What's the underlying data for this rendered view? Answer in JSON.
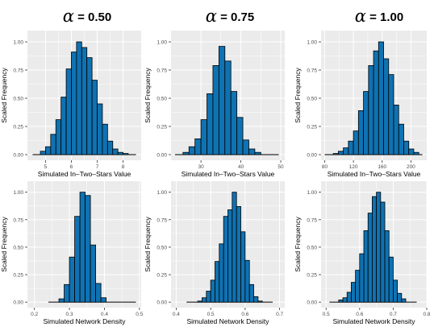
{
  "columns": [
    {
      "symbol": "α",
      "label": "= 0.50"
    },
    {
      "symbol": "α",
      "label": "= 0.75"
    },
    {
      "symbol": "α",
      "label": "= 1.00"
    }
  ],
  "colors": {
    "bar": "#0f72b2",
    "edge": "#000000",
    "panel": "#ebebeb",
    "grid": "#ffffff"
  },
  "chart_data": [
    {
      "type": "bar",
      "xlabel": "Simulated In–Two–Stars Value",
      "ylabel": "Scaled Frequency",
      "xlim": [
        4.3,
        8.7
      ],
      "ylim": [
        -0.05,
        1.1
      ],
      "xticks": [
        5,
        6,
        7,
        8
      ],
      "xtick_labels": [
        "5",
        "6",
        "7",
        "8"
      ],
      "yticks": [
        0,
        0.25,
        0.5,
        0.75,
        1.0
      ],
      "ytick_labels": [
        "0.00",
        "0.25",
        "0.50",
        "0.75",
        "1.00"
      ],
      "bin_width": 0.2,
      "bin_starts": [
        4.8,
        5.0,
        5.2,
        5.4,
        5.6,
        5.8,
        6.0,
        6.2,
        6.4,
        6.6,
        6.8,
        7.0,
        7.2,
        7.4,
        7.6,
        7.8,
        8.0
      ],
      "values": [
        0.03,
        0.07,
        0.18,
        0.31,
        0.51,
        0.76,
        0.91,
        1.0,
        0.95,
        0.86,
        0.66,
        0.45,
        0.27,
        0.12,
        0.05,
        0.02,
        0.01
      ],
      "tail_range": [
        4.5,
        8.5
      ]
    },
    {
      "type": "bar",
      "xlabel": "Simulated In–Two–Stars Value",
      "ylabel": "Scaled Frequency",
      "xlim": [
        22.5,
        51
      ],
      "ylim": [
        -0.05,
        1.1
      ],
      "xticks": [
        30,
        40,
        50
      ],
      "xtick_labels": [
        "30",
        "40",
        "50"
      ],
      "yticks": [
        0,
        0.25,
        0.5,
        0.75,
        1.0
      ],
      "ytick_labels": [
        "0.00",
        "0.25",
        "0.50",
        "0.75",
        "1.00"
      ],
      "bin_width": 1.5,
      "bin_starts": [
        25.5,
        27.0,
        28.5,
        30.0,
        31.5,
        33.0,
        34.5,
        36.0,
        37.5,
        39.0,
        40.5,
        42.0,
        43.5
      ],
      "values": [
        0.02,
        0.07,
        0.14,
        0.31,
        0.54,
        0.79,
        0.96,
        0.83,
        0.56,
        0.33,
        0.13,
        0.05,
        0.02
      ],
      "tail_range": [
        23.5,
        49.5
      ]
    },
    {
      "type": "bar",
      "xlabel": "Simulated In–Two–Stars Value",
      "ylabel": "Scaled Frequency",
      "xlim": [
        75,
        222
      ],
      "ylim": [
        -0.05,
        1.1
      ],
      "xticks": [
        80,
        120,
        160,
        200
      ],
      "xtick_labels": [
        "80",
        "120",
        "160",
        "200"
      ],
      "yticks": [
        0,
        0.25,
        0.5,
        0.75,
        1.0
      ],
      "ytick_labels": [
        "0.00",
        "0.25",
        "0.50",
        "0.75",
        "1.00"
      ],
      "bin_width": 7,
      "bin_starts": [
        92,
        99,
        106,
        113,
        120,
        127,
        134,
        141,
        148,
        155,
        162,
        169,
        176,
        183,
        190,
        197,
        204
      ],
      "values": [
        0.01,
        0.03,
        0.06,
        0.12,
        0.21,
        0.39,
        0.56,
        0.79,
        0.92,
        1.0,
        0.85,
        0.71,
        0.44,
        0.27,
        0.12,
        0.05,
        0.02
      ],
      "tail_range": [
        80,
        216
      ]
    },
    {
      "type": "bar",
      "xlabel": "Simulated Network Density",
      "ylabel": "Scaled Frequency",
      "xlim": [
        0.18,
        0.505
      ],
      "ylim": [
        -0.05,
        1.1
      ],
      "xticks": [
        0.2,
        0.3,
        0.4,
        0.5
      ],
      "xtick_labels": [
        "0.2",
        "0.3",
        "0.4",
        "0.5"
      ],
      "yticks": [
        0,
        0.25,
        0.5,
        0.75,
        1.0
      ],
      "ytick_labels": [
        "0.00",
        "0.25",
        "0.50",
        "0.75",
        "1.00"
      ],
      "bin_width": 0.015,
      "bin_starts": [
        0.27,
        0.285,
        0.3,
        0.315,
        0.33,
        0.345,
        0.36,
        0.375,
        0.39
      ],
      "values": [
        0.03,
        0.16,
        0.41,
        0.78,
        1.0,
        0.97,
        0.52,
        0.17,
        0.04
      ],
      "tail_range": [
        0.24,
        0.49
      ]
    },
    {
      "type": "bar",
      "xlabel": "Simulated Network Density",
      "ylabel": "Scaled Frequency",
      "xlim": [
        0.385,
        0.715
      ],
      "ylim": [
        -0.05,
        1.1
      ],
      "xticks": [
        0.4,
        0.5,
        0.6,
        0.7
      ],
      "xtick_labels": [
        "0.4",
        "0.5",
        "0.6",
        "0.7"
      ],
      "yticks": [
        0,
        0.25,
        0.5,
        0.75,
        1.0
      ],
      "ytick_labels": [
        "0.00",
        "0.25",
        "0.50",
        "0.75",
        "1.00"
      ],
      "bin_width": 0.0125,
      "bin_starts": [
        0.4625,
        0.475,
        0.4875,
        0.5,
        0.5125,
        0.525,
        0.5375,
        0.55,
        0.5625,
        0.575,
        0.5875,
        0.6,
        0.6125,
        0.625,
        0.6375
      ],
      "values": [
        0.01,
        0.04,
        0.1,
        0.2,
        0.37,
        0.53,
        0.78,
        0.84,
        1.0,
        0.87,
        0.64,
        0.38,
        0.16,
        0.05,
        0.01
      ],
      "tail_range": [
        0.43,
        0.68
      ]
    },
    {
      "type": "bar",
      "xlabel": "Simulated Network Density",
      "ylabel": "Scaled Frequency",
      "xlim": [
        0.485,
        0.8
      ],
      "ylim": [
        -0.05,
        1.1
      ],
      "xticks": [
        0.5,
        0.6,
        0.7,
        0.8
      ],
      "xtick_labels": [
        "0.5",
        "0.6",
        "0.7",
        "0.8"
      ],
      "yticks": [
        0,
        0.25,
        0.5,
        0.75,
        1.0
      ],
      "ytick_labels": [
        "0.00",
        "0.25",
        "0.50",
        "0.75",
        "1.00"
      ],
      "bin_width": 0.0125,
      "bin_starts": [
        0.5375,
        0.55,
        0.5625,
        0.575,
        0.5875,
        0.6,
        0.6125,
        0.625,
        0.6375,
        0.65,
        0.6625,
        0.675,
        0.6875,
        0.7,
        0.7125,
        0.725
      ],
      "values": [
        0.02,
        0.04,
        0.09,
        0.18,
        0.29,
        0.44,
        0.65,
        0.81,
        0.96,
        1.0,
        0.91,
        0.65,
        0.41,
        0.2,
        0.08,
        0.03
      ],
      "tail_range": [
        0.51,
        0.77
      ]
    }
  ]
}
